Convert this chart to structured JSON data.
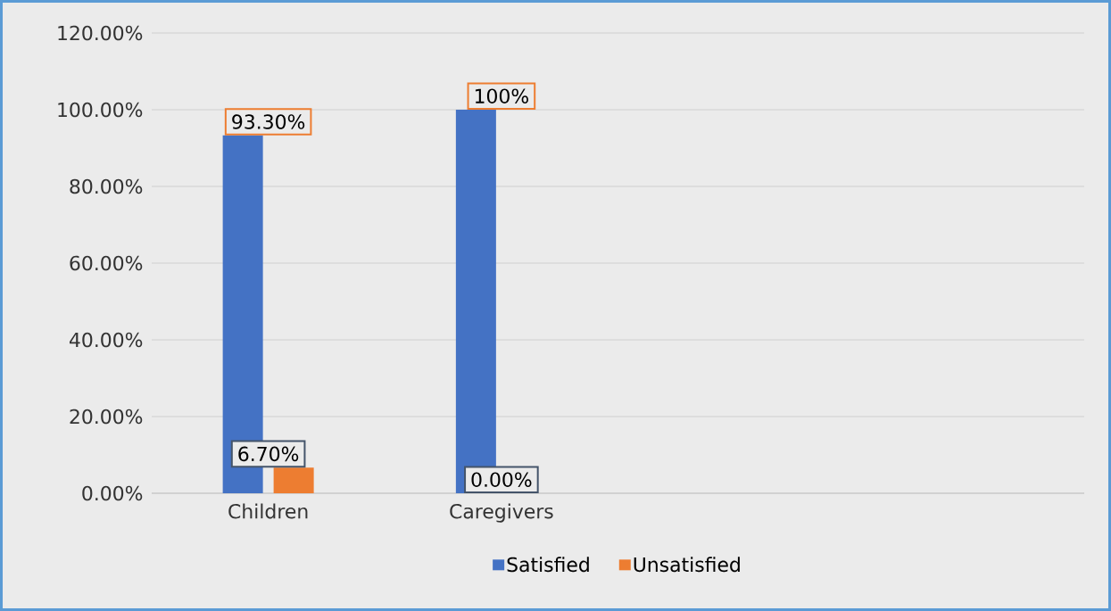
{
  "chart_data": {
    "type": "bar",
    "categories": [
      "Children",
      "Caregivers",
      null,
      null
    ],
    "series": [
      {
        "name": "Satisfied",
        "color": "#4472c4",
        "values": [
          93.3,
          100,
          null,
          null
        ],
        "value_labels": [
          "93.30%",
          "100%",
          null,
          null
        ]
      },
      {
        "name": "Unsatisfied",
        "color": "#ed7d31",
        "values": [
          6.7,
          0,
          null,
          null
        ],
        "value_labels": [
          "6.70%",
          "0.00%",
          null,
          null
        ]
      }
    ],
    "ylim": [
      0,
      120
    ],
    "yticks": [
      {
        "value": 0,
        "label": "0.00%"
      },
      {
        "value": 20,
        "label": "20.00%"
      },
      {
        "value": 40,
        "label": "40.00%"
      },
      {
        "value": 60,
        "label": "60.00%"
      },
      {
        "value": 80,
        "label": "80.00%"
      },
      {
        "value": 100,
        "label": "100.00%"
      },
      {
        "value": 120,
        "label": "120.00%"
      }
    ],
    "grid": "y",
    "legend": "bottom"
  }
}
